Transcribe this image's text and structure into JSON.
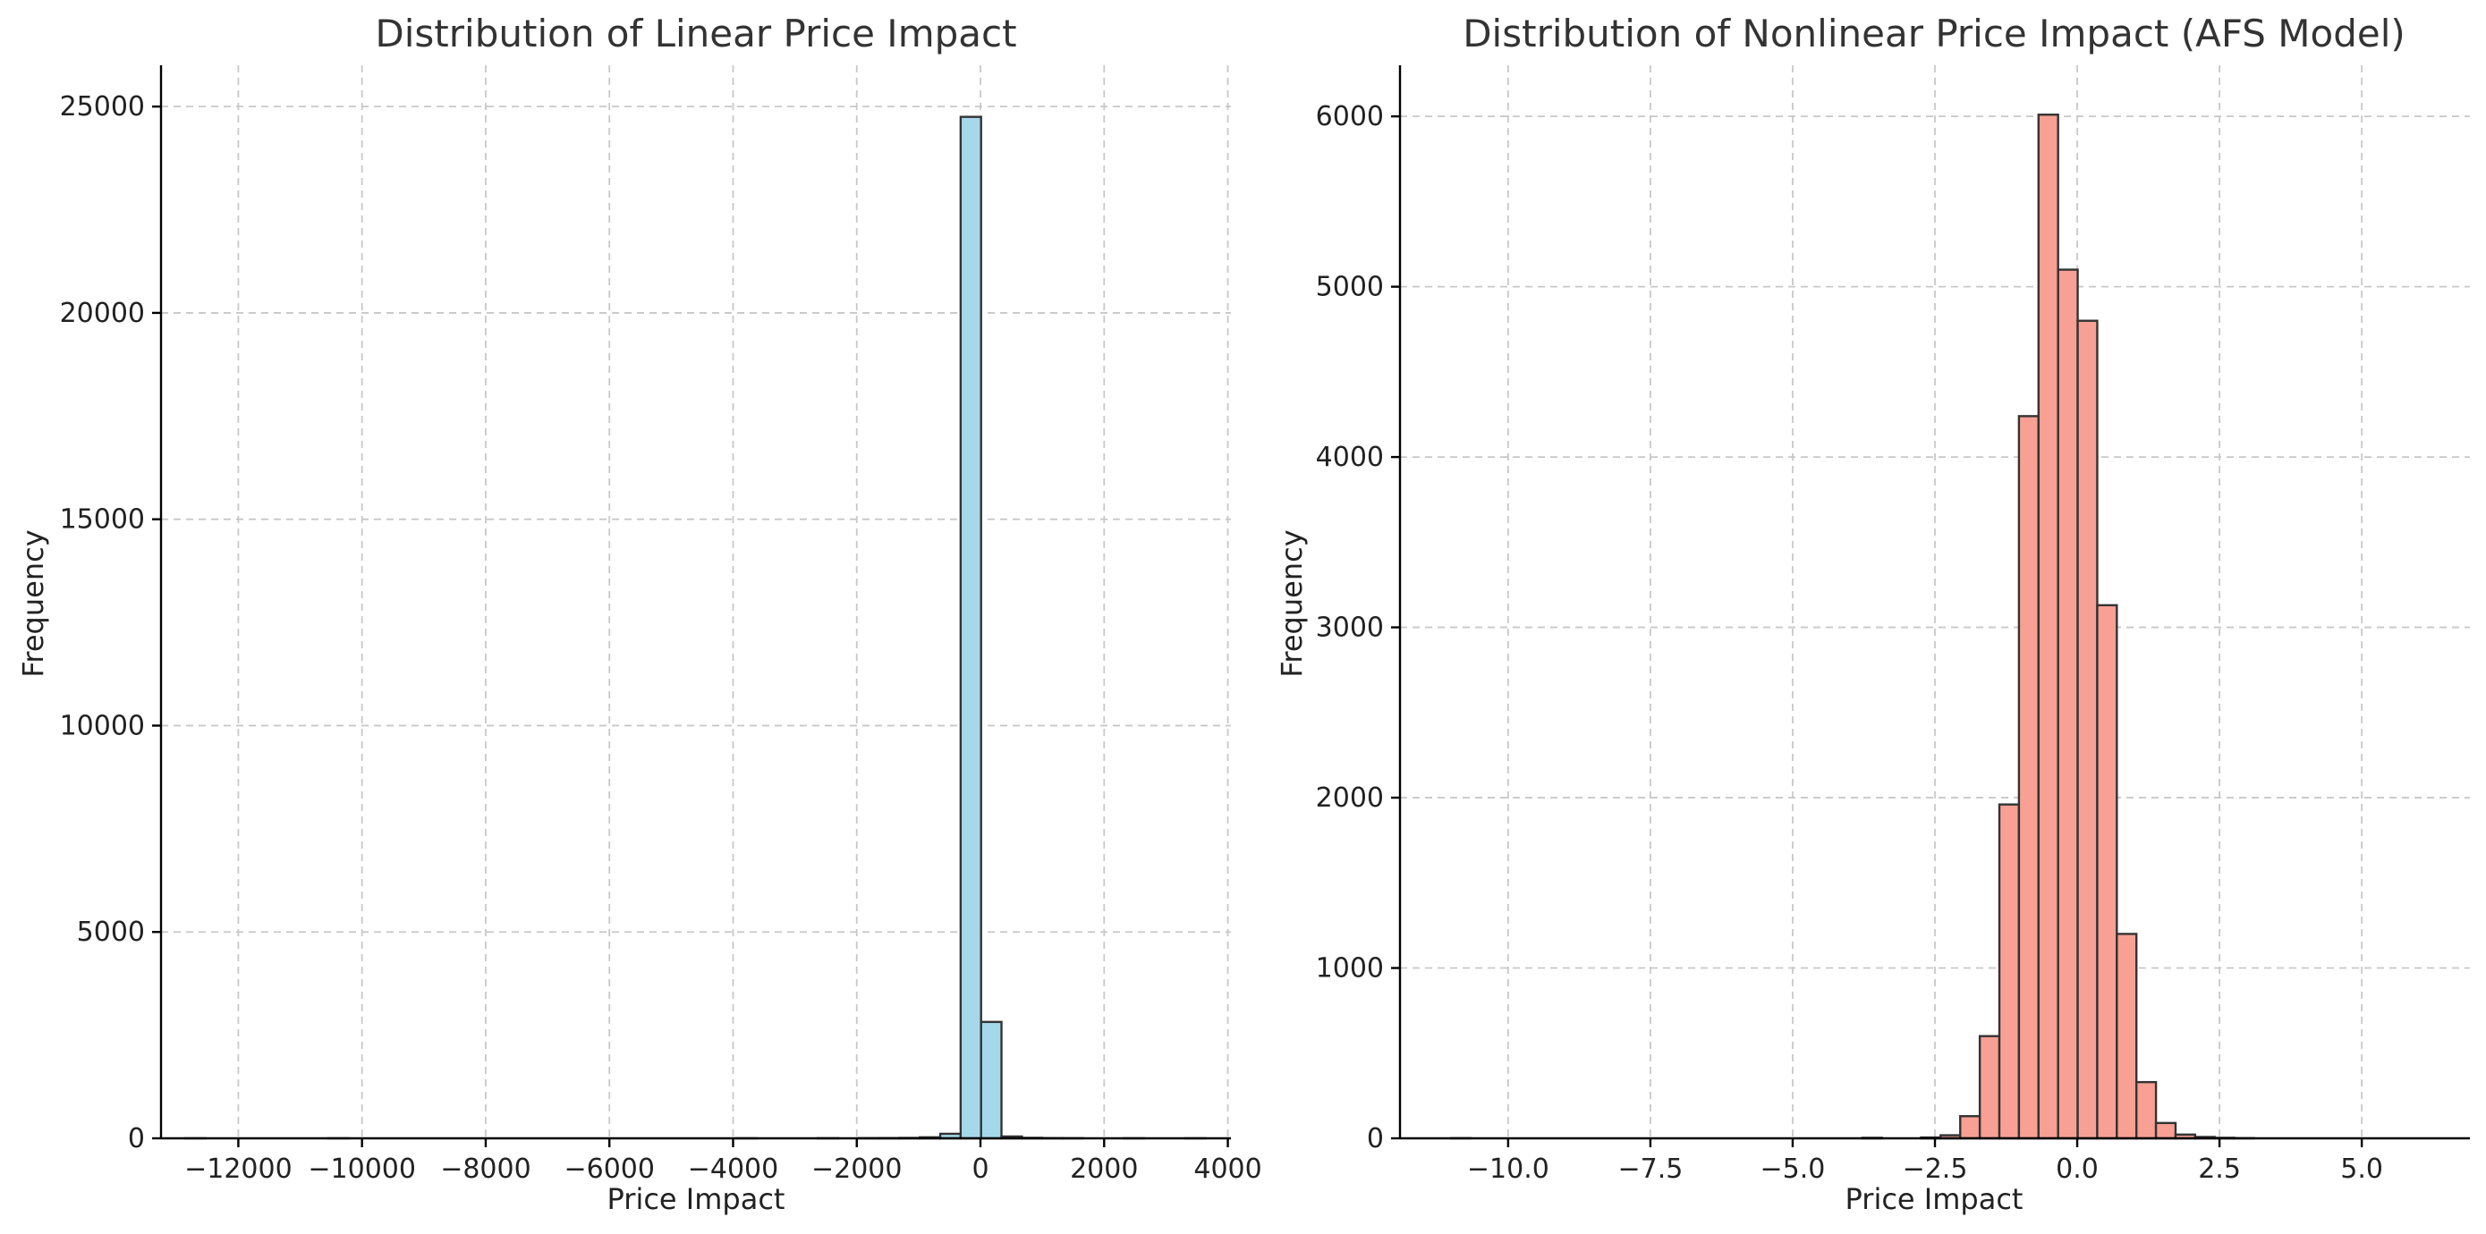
{
  "chart_data": [
    {
      "type": "bar",
      "subtype": "histogram",
      "title": "Distribution of Linear Price Impact",
      "xlabel": "Price Impact",
      "ylabel": "Frequency",
      "xlim": [
        -13250,
        4050
      ],
      "ylim": [
        0,
        26000
      ],
      "xticks": [
        -12000,
        -10000,
        -8000,
        -6000,
        -4000,
        -2000,
        0,
        2000,
        4000
      ],
      "xtick_labels": [
        "−12000",
        "−10000",
        "−8000",
        "−6000",
        "−4000",
        "−2000",
        "0",
        "2000",
        "4000"
      ],
      "yticks": [
        0,
        5000,
        10000,
        15000,
        20000,
        25000
      ],
      "ytick_labels": [
        "0",
        "5000",
        "10000",
        "15000",
        "20000",
        "25000"
      ],
      "grid": true,
      "bar_color": "#a6d8ec",
      "edge_color": "#333333",
      "bins": [
        {
          "x0": -12860,
          "x1": -12530,
          "value": 1
        },
        {
          "x0": -10550,
          "x1": -10220,
          "value": 1
        },
        {
          "x0": -3950,
          "x1": -3620,
          "value": 1
        },
        {
          "x0": -2630,
          "x1": -2300,
          "value": 2
        },
        {
          "x0": -1970,
          "x1": -1640,
          "value": 4
        },
        {
          "x0": -1640,
          "x1": -1310,
          "value": 6
        },
        {
          "x0": -1310,
          "x1": -980,
          "value": 10
        },
        {
          "x0": -980,
          "x1": -650,
          "value": 25
        },
        {
          "x0": -650,
          "x1": -320,
          "value": 110
        },
        {
          "x0": -320,
          "x1": 10,
          "value": 24750
        },
        {
          "x0": 10,
          "x1": 340,
          "value": 2820
        },
        {
          "x0": 340,
          "x1": 670,
          "value": 45
        },
        {
          "x0": 670,
          "x1": 1000,
          "value": 12
        },
        {
          "x0": 1000,
          "x1": 1330,
          "value": 5
        },
        {
          "x0": 1330,
          "x1": 1660,
          "value": 3
        },
        {
          "x0": 2320,
          "x1": 2650,
          "value": 1
        },
        {
          "x0": 3310,
          "x1": 3640,
          "value": 1
        }
      ]
    },
    {
      "type": "bar",
      "subtype": "histogram",
      "title": "Distribution of Nonlinear Price Impact (AFS Model)",
      "xlabel": "Price Impact",
      "ylabel": "Frequency",
      "xlim": [
        -11.9,
        6.9
      ],
      "ylim": [
        0,
        6300
      ],
      "xticks": [
        -10.0,
        -7.5,
        -5.0,
        -2.5,
        0.0,
        2.5,
        5.0
      ],
      "xtick_labels": [
        "−10.0",
        "−7.5",
        "−5.0",
        "−2.5",
        "0.0",
        "2.5",
        "5.0"
      ],
      "yticks": [
        0,
        1000,
        2000,
        3000,
        4000,
        5000,
        6000
      ],
      "ytick_labels": [
        "0",
        "1000",
        "2000",
        "3000",
        "4000",
        "5000",
        "6000"
      ],
      "grid": true,
      "bar_color": "#f8a093",
      "edge_color": "#333333",
      "bins": [
        {
          "x0": -11.0,
          "x1": -10.656,
          "value": 1
        },
        {
          "x0": -3.776,
          "x1": -3.432,
          "value": 3
        },
        {
          "x0": -2.744,
          "x1": -2.4,
          "value": 5
        },
        {
          "x0": -2.4,
          "x1": -2.056,
          "value": 18
        },
        {
          "x0": -2.056,
          "x1": -1.712,
          "value": 130
        },
        {
          "x0": -1.712,
          "x1": -1.368,
          "value": 600
        },
        {
          "x0": -1.368,
          "x1": -1.024,
          "value": 1960
        },
        {
          "x0": -1.024,
          "x1": -0.68,
          "value": 4240
        },
        {
          "x0": -0.68,
          "x1": -0.336,
          "value": 6010
        },
        {
          "x0": -0.336,
          "x1": 0.008,
          "value": 5100
        },
        {
          "x0": 0.008,
          "x1": 0.352,
          "value": 4800
        },
        {
          "x0": 0.352,
          "x1": 0.696,
          "value": 3130
        },
        {
          "x0": 0.696,
          "x1": 1.04,
          "value": 1200
        },
        {
          "x0": 1.04,
          "x1": 1.384,
          "value": 330
        },
        {
          "x0": 1.384,
          "x1": 1.728,
          "value": 90
        },
        {
          "x0": 1.728,
          "x1": 2.072,
          "value": 22
        },
        {
          "x0": 2.072,
          "x1": 2.416,
          "value": 8
        },
        {
          "x0": 2.416,
          "x1": 2.76,
          "value": 3
        },
        {
          "x0": 2.76,
          "x1": 3.104,
          "value": 1
        }
      ]
    }
  ]
}
